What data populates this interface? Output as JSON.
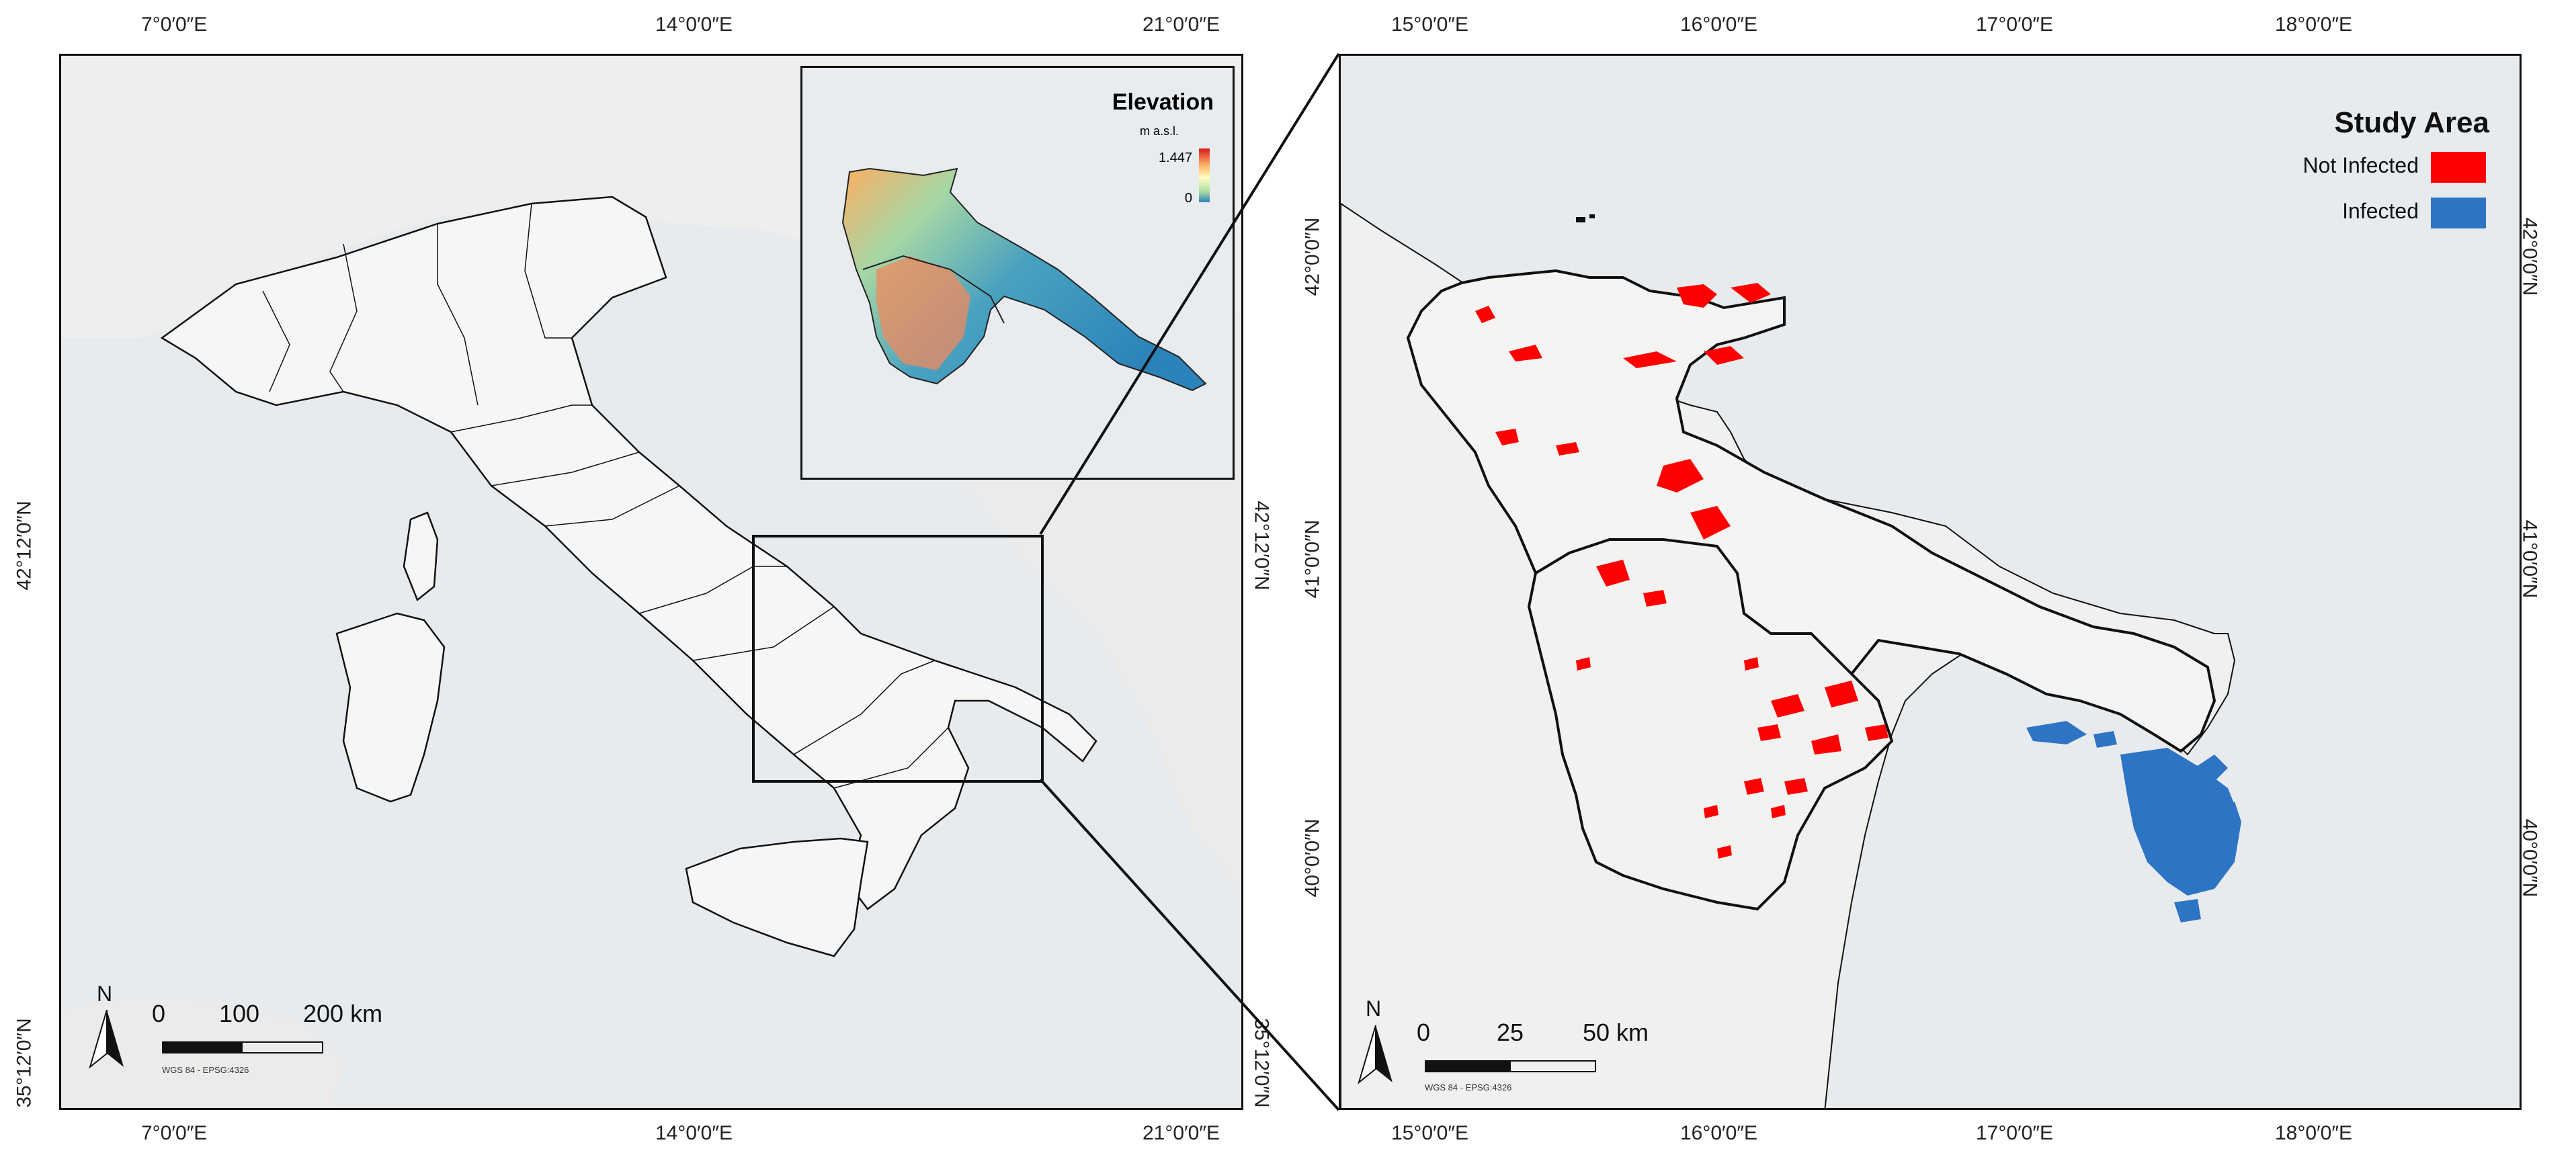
{
  "left_map": {
    "top_ticks": [
      "7°0′0″E",
      "14°0′0″E",
      "21°0′0″E"
    ],
    "bottom_ticks": [
      "7°0′0″E",
      "14°0′0″E",
      "21°0′0″E"
    ],
    "left_ticks": [
      "42°12′0″N",
      "35°12′0″N"
    ],
    "right_ticks": [
      "42°12′0″N",
      "35°12′0″N"
    ],
    "inset": {
      "title": "Elevation",
      "unit": "m a.s.l.",
      "max_label": "1.447",
      "min_label": "0",
      "ramp_colors": [
        "#d7191c",
        "#fdae61",
        "#ffffbf",
        "#abdda4",
        "#2b83ba"
      ]
    },
    "scale_bar": {
      "labels": [
        "0",
        "100",
        "200 km"
      ],
      "crs": "WGS 84 - EPSG:4326"
    },
    "north": "N"
  },
  "right_map": {
    "top_ticks": [
      "15°0′0″E",
      "16°0′0″E",
      "17°0′0″E",
      "18°0′0″E"
    ],
    "bottom_ticks": [
      "15°0′0″E",
      "16°0′0″E",
      "17°0′0″E",
      "18°0′0″E"
    ],
    "left_ticks": [
      "42°0′0″N",
      "41°0′0″N",
      "40°0′0″N"
    ],
    "right_ticks": [
      "42°0′0″N",
      "41°0′0″N",
      "40°0′0″N"
    ],
    "legend": {
      "title": "Study Area",
      "items": [
        {
          "label": "Not Infected",
          "color": "#ff0000"
        },
        {
          "label": "Infected",
          "color": "#2e74c4"
        }
      ]
    },
    "scale_bar": {
      "labels": [
        "0",
        "25",
        "50 km"
      ],
      "crs": "WGS 84 - EPSG:4326"
    },
    "north": "N"
  },
  "colors": {
    "sea": "#e8ebee",
    "land": "#f3f3f2",
    "border": "#111111",
    "not_infected": "#ff0000",
    "infected": "#2e74c4"
  }
}
